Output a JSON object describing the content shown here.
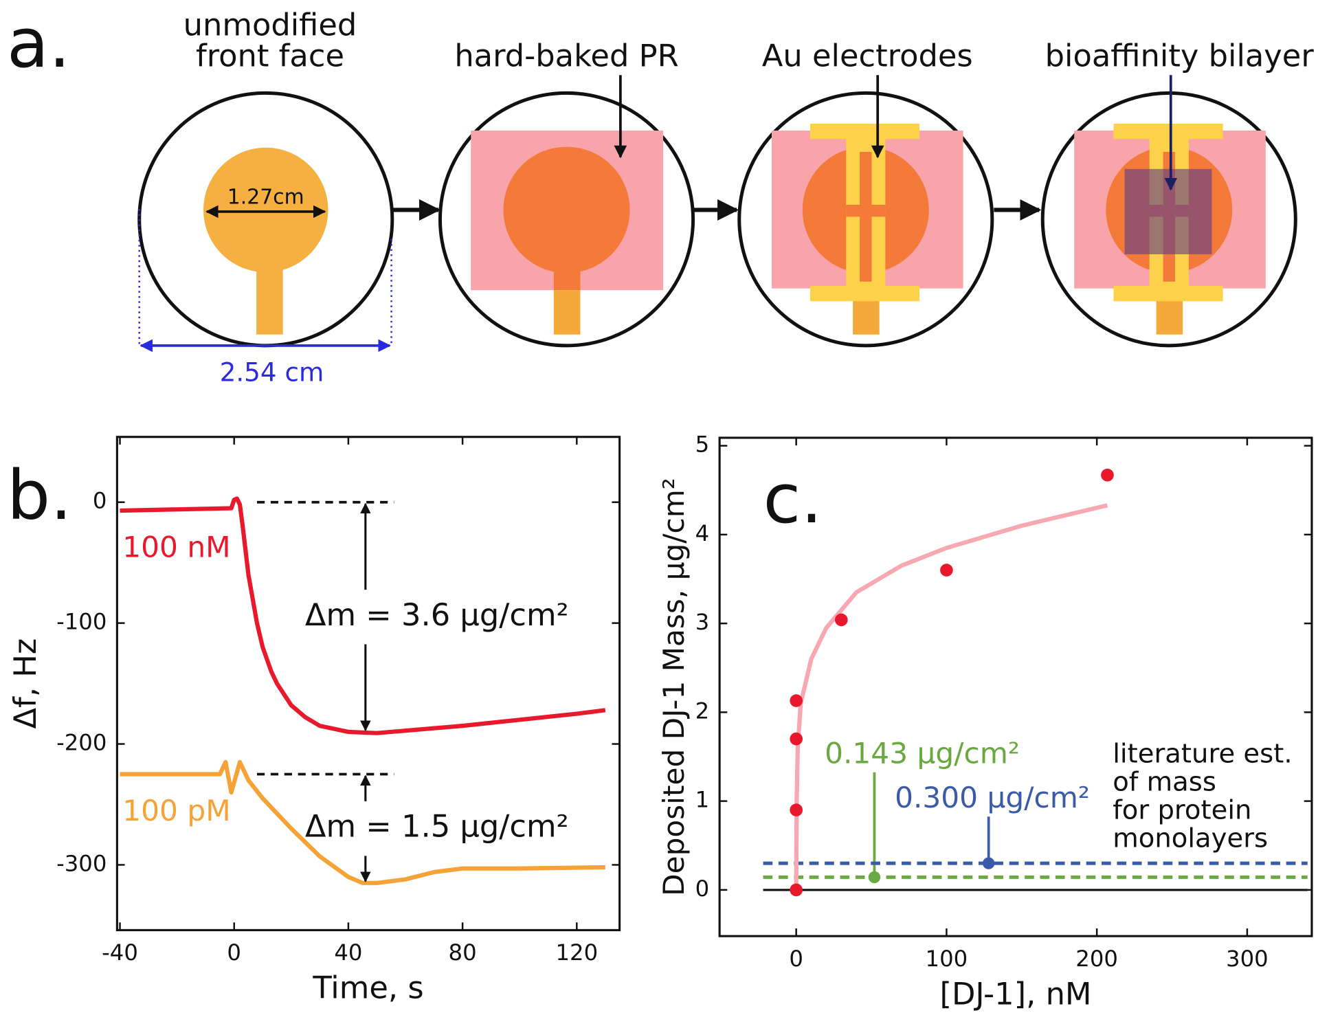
{
  "diagram": {
    "label": "a.",
    "steps": [
      {
        "title": [
          "unmodified",
          "front face"
        ]
      },
      {
        "title": [
          "hard-baked PR"
        ]
      },
      {
        "title": [
          "Au electrodes"
        ]
      },
      {
        "title": [
          "bioaffinity bilayer"
        ]
      }
    ],
    "dimensions": [
      "1.27cm",
      "2.54 cm"
    ]
  },
  "chart_data": [
    {
      "type": "line",
      "label": "b.",
      "x_label": "Time, s",
      "y_label": "Δf, Hz",
      "xlim": [
        -41,
        135
      ],
      "ylim": [
        -354,
        54
      ],
      "xticks": [
        -40,
        0,
        40,
        80,
        120
      ],
      "yticks": [
        -300,
        -200,
        -100,
        0
      ],
      "series": [
        {
          "name": "100 nM",
          "color": "#e8192c",
          "x": [
            -40,
            -1,
            0,
            1,
            2,
            3,
            5,
            8,
            10,
            13,
            15,
            20,
            25,
            30,
            40,
            50,
            60,
            80,
            100,
            120,
            130
          ],
          "values": [
            -7,
            -5,
            2,
            3,
            -2,
            -20,
            -60,
            -100,
            -120,
            -140,
            -150,
            -168,
            -178,
            -185,
            -190,
            -191,
            -189,
            -185,
            -180,
            -175,
            -172
          ]
        },
        {
          "name": "100 pM",
          "color": "#f5a236",
          "x": [
            -40,
            -5,
            -3,
            -1,
            2,
            5,
            10,
            20,
            30,
            40,
            45,
            50,
            60,
            70,
            80,
            100,
            130
          ],
          "values": [
            -225,
            -225,
            -215,
            -240,
            -215,
            -230,
            -245,
            -270,
            -293,
            -310,
            -315,
            -315,
            -312,
            -306,
            -303,
            -303,
            -302
          ]
        }
      ],
      "levels": [
        {
          "from": 0,
          "to": -190,
          "label": "Δm = 3.6 μg/cm²"
        },
        {
          "from": -225,
          "to": -315,
          "label": "Δm = 1.5 μg/cm²"
        }
      ]
    },
    {
      "type": "scatter",
      "label": "c.",
      "x_label": "[DJ-1], nM",
      "y_label": "Deposited DJ-1 Mass, μg/cm²",
      "xlim": [
        -51,
        343
      ],
      "ylim": [
        -0.52,
        5.09
      ],
      "xticks": [
        0,
        100,
        200,
        300
      ],
      "yticks": [
        0,
        1,
        2,
        3,
        4,
        5
      ],
      "points": {
        "color": "#e8192c",
        "x": [
          0,
          0,
          0,
          0,
          30,
          100,
          207
        ],
        "values": [
          0,
          0.9,
          1.7,
          2.13,
          3.04,
          3.6,
          4.67
        ]
      },
      "fit": {
        "color": "#f7a8b0",
        "x": [
          0,
          0.3,
          1,
          3,
          10,
          20,
          40,
          70,
          100,
          150,
          207
        ],
        "values": [
          0,
          1.0,
          1.6,
          2.1,
          2.6,
          2.95,
          3.35,
          3.65,
          3.85,
          4.1,
          4.33
        ]
      },
      "reference_lines": [
        {
          "value": 0.143,
          "label": "0.143 μg/cm²",
          "color": "#6aa842",
          "marker_x": 52
        },
        {
          "value": 0.3,
          "label": "0.300 μg/cm²",
          "color": "#3a5ba8",
          "marker_x": 128
        }
      ],
      "note": [
        "literature est.",
        "of mass",
        "for protein",
        "monolayers"
      ]
    }
  ]
}
